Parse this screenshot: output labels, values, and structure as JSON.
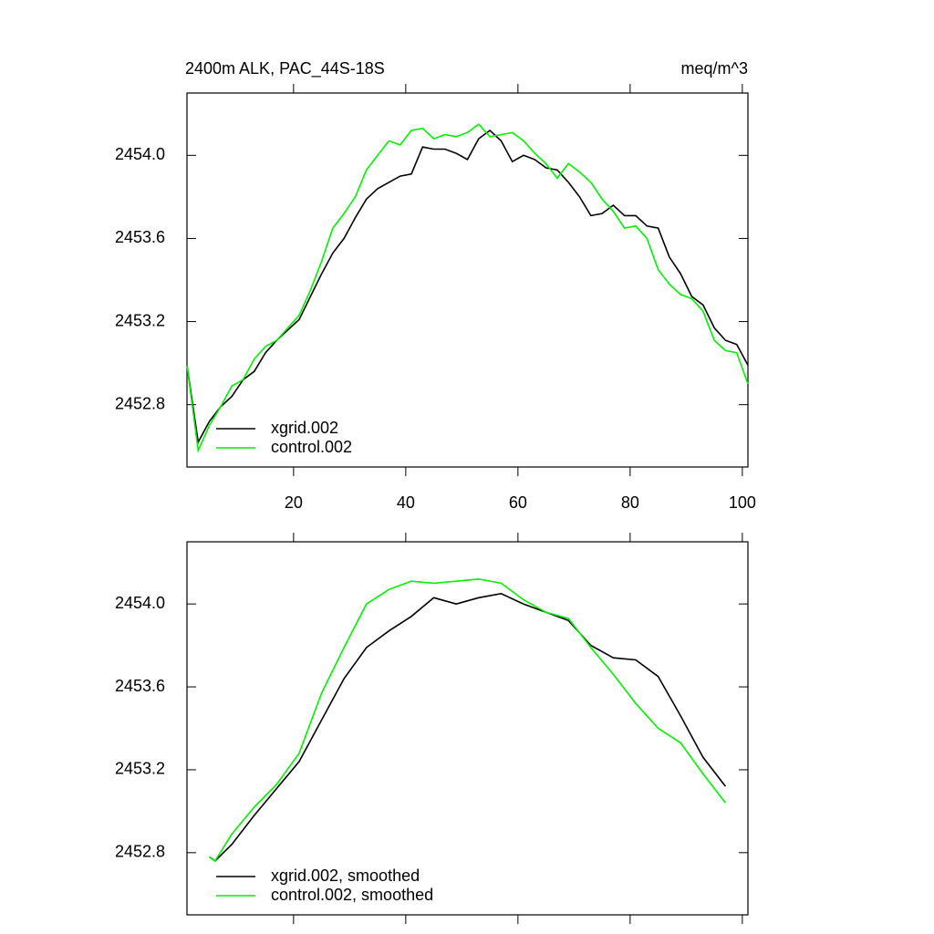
{
  "chart_data": [
    {
      "type": "line",
      "title": "2400m ALK, PAC_44S-18S",
      "units": "meq/m^3",
      "x": [
        1,
        3,
        5,
        7,
        9,
        11,
        13,
        15,
        17,
        19,
        21,
        23,
        25,
        27,
        29,
        31,
        33,
        35,
        37,
        39,
        41,
        43,
        45,
        47,
        49,
        51,
        53,
        55,
        57,
        59,
        61,
        63,
        65,
        67,
        69,
        71,
        73,
        75,
        77,
        79,
        81,
        83,
        85,
        87,
        89,
        91,
        93,
        95,
        97,
        99,
        101
      ],
      "series": [
        {
          "name": "xgrid.002",
          "color": "#000000",
          "values": [
            2452.99,
            2452.62,
            2452.72,
            2452.79,
            2452.84,
            2452.92,
            2452.96,
            2453.05,
            2453.11,
            2453.16,
            2453.21,
            2453.32,
            2453.43,
            2453.53,
            2453.6,
            2453.7,
            2453.79,
            2453.84,
            2453.87,
            2453.9,
            2453.91,
            2454.04,
            2454.03,
            2454.03,
            2454.01,
            2453.98,
            2454.08,
            2454.12,
            2454.07,
            2453.97,
            2454.0,
            2453.98,
            2453.94,
            2453.93,
            2453.87,
            2453.8,
            2453.71,
            2453.72,
            2453.76,
            2453.71,
            2453.71,
            2453.66,
            2453.65,
            2453.51,
            2453.43,
            2453.32,
            2453.28,
            2453.17,
            2453.11,
            2453.09,
            2452.99
          ]
        },
        {
          "name": "control.002",
          "color": "#00ee00",
          "values": [
            2452.99,
            2452.58,
            2452.7,
            2452.79,
            2452.89,
            2452.92,
            2453.02,
            2453.08,
            2453.11,
            2453.17,
            2453.23,
            2453.35,
            2453.49,
            2453.65,
            2453.72,
            2453.8,
            2453.93,
            2454.0,
            2454.07,
            2454.05,
            2454.12,
            2454.13,
            2454.08,
            2454.1,
            2454.09,
            2454.11,
            2454.15,
            2454.09,
            2454.1,
            2454.11,
            2454.07,
            2454.01,
            2453.96,
            2453.89,
            2453.96,
            2453.92,
            2453.87,
            2453.79,
            2453.73,
            2453.65,
            2453.66,
            2453.6,
            2453.45,
            2453.38,
            2453.33,
            2453.31,
            2453.25,
            2453.11,
            2453.06,
            2453.05,
            2452.9
          ]
        }
      ],
      "xlim": [
        1,
        101
      ],
      "xticks": [
        20,
        40,
        60,
        80,
        100
      ],
      "ylim": [
        2452.5,
        2454.3
      ],
      "yticks": [
        {
          "value": 2452.8,
          "label": "2452.8"
        },
        {
          "value": 2453.2,
          "label": "2453.2"
        },
        {
          "value": 2453.6,
          "label": "2453.6"
        },
        {
          "value": 2454,
          "label": "2454.0"
        }
      ],
      "legend": "lower left"
    },
    {
      "type": "line",
      "x": [
        5,
        6,
        9,
        13,
        17,
        21,
        25,
        29,
        33,
        37,
        41,
        45,
        49,
        53,
        57,
        61,
        65,
        69,
        73,
        77,
        81,
        85,
        89,
        93,
        97
      ],
      "series": [
        {
          "name": "xgrid.002, smoothed",
          "color": "#000000",
          "values": [
            2452.78,
            2452.76,
            2452.84,
            2452.98,
            2453.11,
            2453.24,
            2453.44,
            2453.64,
            2453.79,
            2453.87,
            2453.94,
            2454.03,
            2454.0,
            2454.03,
            2454.05,
            2454.0,
            2453.96,
            2453.92,
            2453.8,
            2453.74,
            2453.73,
            2453.65,
            2453.46,
            2453.26,
            2453.12
          ]
        },
        {
          "name": "control.002, smoothed",
          "color": "#00ee00",
          "values": [
            2452.78,
            2452.76,
            2452.89,
            2453.02,
            2453.13,
            2453.28,
            2453.57,
            2453.79,
            2454.0,
            2454.07,
            2454.11,
            2454.1,
            2454.11,
            2454.12,
            2454.1,
            2454.02,
            2453.96,
            2453.93,
            2453.79,
            2453.66,
            2453.52,
            2453.4,
            2453.33,
            2453.18,
            2453.04
          ]
        }
      ],
      "xlim": [
        1,
        101
      ],
      "ylim": [
        2452.5,
        2454.3
      ],
      "yticks": [
        {
          "value": 2452.8,
          "label": "2452.8"
        },
        {
          "value": 2453.2,
          "label": "2453.2"
        },
        {
          "value": 2453.6,
          "label": "2453.6"
        },
        {
          "value": 2454,
          "label": "2454.0"
        }
      ],
      "legend": "lower left"
    }
  ]
}
